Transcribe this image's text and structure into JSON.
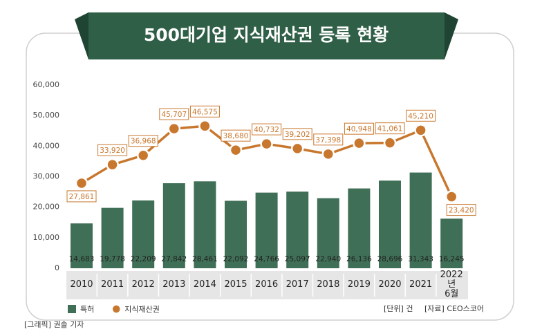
{
  "chart_data": {
    "type": "bar-line",
    "title": "500대기업 지식재산권 등록 현황",
    "categories": [
      "2010",
      "2011",
      "2012",
      "2013",
      "2014",
      "2015",
      "2016",
      "2017",
      "2018",
      "2019",
      "2020",
      "2021",
      "2022년\n6월"
    ],
    "series": [
      {
        "name": "특허",
        "type": "bar",
        "color": "#3f6f56",
        "values": [
          14683,
          19778,
          22209,
          27842,
          28461,
          22092,
          24766,
          25097,
          22940,
          26136,
          28696,
          31343,
          16245
        ],
        "value_labels": [
          "14,683",
          "19,778",
          "22,209",
          "27,842",
          "28,461",
          "22,092",
          "24,766",
          "25,097",
          "22,940",
          "26,136",
          "28,696",
          "31,343",
          "16,245"
        ]
      },
      {
        "name": "지식재산권",
        "type": "line",
        "color": "#c8772e",
        "values": [
          27861,
          33920,
          36968,
          45707,
          46575,
          38680,
          40732,
          39202,
          37398,
          40948,
          41061,
          45210,
          23420
        ],
        "value_labels": [
          "27,861",
          "33,920",
          "36,968",
          "45,707",
          "46,575",
          "38,680",
          "40,732",
          "39,202",
          "37,398",
          "40,948",
          "41,061",
          "45,210",
          "23,420"
        ]
      }
    ],
    "ylim": [
      0,
      60000
    ],
    "yticks": [
      0,
      {
        "value": 10000,
        "label": "10,000"
      },
      {
        "value": 20000,
        "label": "20,000"
      },
      {
        "value": 30000,
        "label": "30,000"
      },
      {
        "value": 40000,
        "label": "40,000"
      },
      {
        "value": 50000,
        "label": "50,000"
      },
      {
        "value": 60000,
        "label": "60,000"
      }
    ],
    "unit_note": "[단위] 건",
    "source": "[자료] CEO스코어",
    "credit": "[그래픽] 권솔 기자"
  }
}
